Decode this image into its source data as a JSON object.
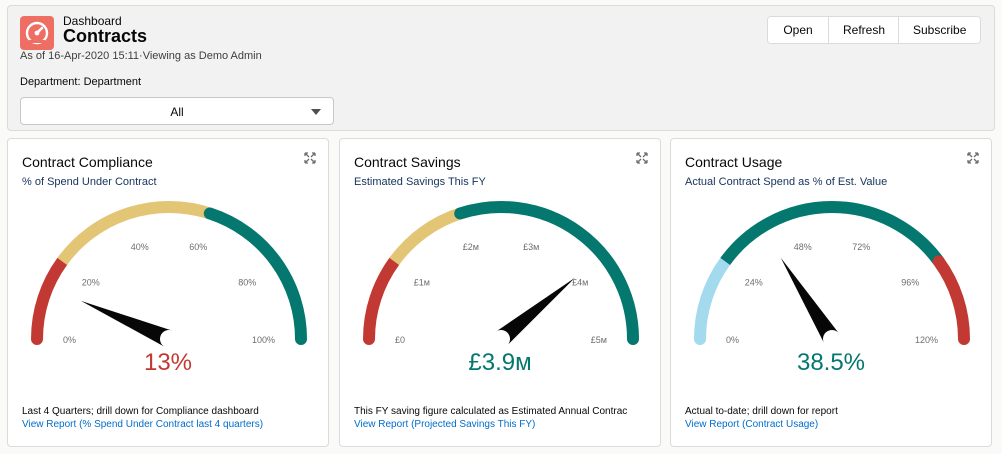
{
  "header": {
    "eyebrow": "Dashboard",
    "title": "Contracts",
    "meta": "As of 16-Apr-2020 15:11·Viewing as Demo Admin",
    "filter_label": "Department: Department",
    "filter_value": "All",
    "buttons": {
      "open": "Open",
      "refresh": "Refresh",
      "subscribe": "Subscribe"
    },
    "icon": "dashboard-gauge-icon"
  },
  "colors": {
    "red": "#c23934",
    "yellow": "#e2c675",
    "green": "#04776f",
    "lightblue": "#a3daee",
    "needle": "#080707"
  },
  "widgets": [
    {
      "title": "Contract Compliance",
      "subtitle": "% of Spend Under Contract",
      "value": "13%",
      "value_color": "#c23934",
      "footer_text": "Last 4 Quarters; drill down for Compliance dashboard",
      "footer_link": "View Report (% Spend Under Contract last 4 quarters)",
      "gauge": {
        "min": 0,
        "max": 100,
        "needle": 13,
        "segments": [
          {
            "to": 20,
            "color": "#c23934"
          },
          {
            "to": 60,
            "color": "#e2c675"
          },
          {
            "to": 100,
            "color": "#04776f"
          }
        ],
        "ticks": [
          {
            "v": 0,
            "label": "0%"
          },
          {
            "v": 20,
            "label": "20%"
          },
          {
            "v": 40,
            "label": "40%"
          },
          {
            "v": 60,
            "label": "60%"
          },
          {
            "v": 80,
            "label": "80%"
          },
          {
            "v": 100,
            "label": "100%"
          }
        ]
      }
    },
    {
      "title": "Contract Savings",
      "subtitle": "Estimated Savings This FY",
      "value": "£3.9м",
      "value_color": "#04776f",
      "footer_text": "This FY saving figure calculated as Estimated Annual Contrac",
      "footer_link": "View Report (Projected Savings This FY)",
      "gauge": {
        "min": 0,
        "max": 5,
        "needle": 3.9,
        "segments": [
          {
            "to": 1,
            "color": "#c23934"
          },
          {
            "to": 2,
            "color": "#e2c675"
          },
          {
            "to": 5,
            "color": "#04776f"
          }
        ],
        "ticks": [
          {
            "v": 0,
            "label": "£0"
          },
          {
            "v": 1,
            "label": "£1м"
          },
          {
            "v": 2,
            "label": "£2м"
          },
          {
            "v": 3,
            "label": "£3м"
          },
          {
            "v": 4,
            "label": "£4м"
          },
          {
            "v": 5,
            "label": "£5м"
          }
        ]
      }
    },
    {
      "title": "Contract Usage",
      "subtitle": "Actual Contract Spend as % of Est. Value",
      "value": "38.5%",
      "value_color": "#04776f",
      "footer_text": "Actual to-date; drill down for report",
      "footer_link": "View Report (Contract Usage)",
      "gauge": {
        "min": 0,
        "max": 120,
        "needle": 38.5,
        "segments": [
          {
            "to": 24,
            "color": "#a3daee"
          },
          {
            "to": 96,
            "color": "#04776f"
          },
          {
            "to": 120,
            "color": "#c23934"
          }
        ],
        "ticks": [
          {
            "v": 0,
            "label": "0%"
          },
          {
            "v": 24,
            "label": "24%"
          },
          {
            "v": 48,
            "label": "48%"
          },
          {
            "v": 72,
            "label": "72%"
          },
          {
            "v": 96,
            "label": "96%"
          },
          {
            "v": 120,
            "label": "120%"
          }
        ]
      }
    }
  ]
}
